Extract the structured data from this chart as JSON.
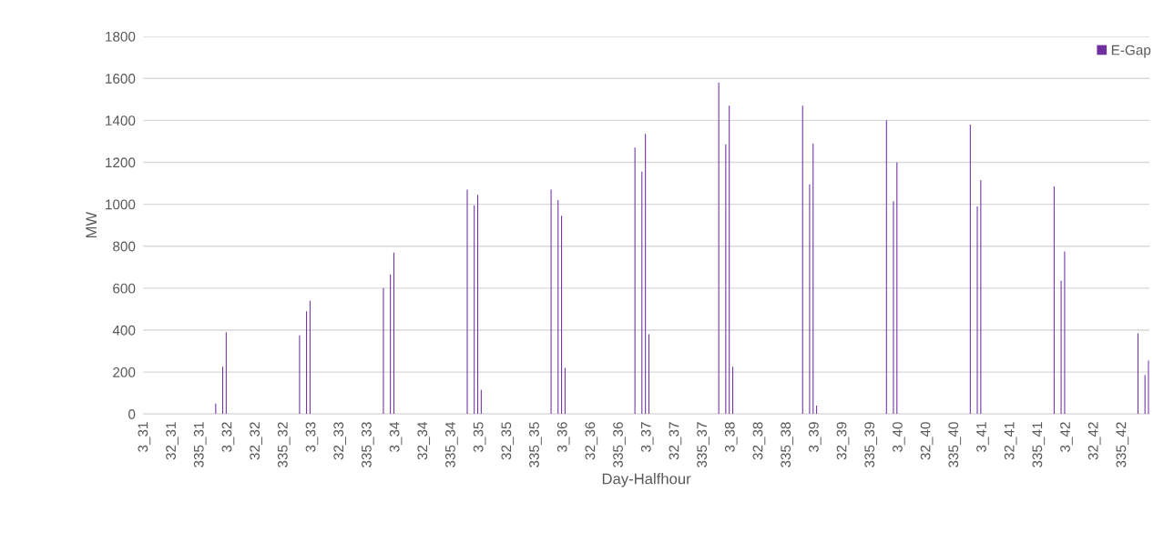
{
  "chart_data": {
    "type": "bar",
    "xlabel": "Day-Halfhour",
    "ylabel": "MW",
    "legend": "top right",
    "grid": "y",
    "ylim": [
      0,
      1800
    ],
    "yticks": [
      0,
      200,
      400,
      600,
      800,
      1000,
      1200,
      1400,
      1600,
      1800
    ],
    "categories": [
      "3_31",
      null,
      null,
      null,
      null,
      null,
      null,
      null,
      null,
      null,
      null,
      null,
      null,
      null,
      null,
      null,
      "32_31",
      null,
      null,
      null,
      null,
      null,
      null,
      null,
      null,
      null,
      null,
      null,
      null,
      null,
      null,
      null,
      "335_31",
      null,
      null,
      null,
      null,
      null,
      null,
      null,
      null,
      null,
      null,
      null,
      null,
      null,
      null,
      null,
      "3_32",
      null,
      null,
      null,
      null,
      null,
      null,
      null,
      null,
      null,
      null,
      null,
      null,
      null,
      null,
      null,
      "32_32",
      null,
      null,
      null,
      null,
      null,
      null,
      null,
      null,
      null,
      null,
      null,
      null,
      null,
      null,
      null,
      "335_32",
      null,
      null,
      null,
      null,
      null,
      null,
      null,
      null,
      null,
      null,
      null,
      null,
      null,
      null,
      null,
      "3_33",
      null,
      null,
      null,
      null,
      null,
      null,
      null,
      null,
      null,
      null,
      null,
      null,
      null,
      null,
      null,
      "32_33",
      null,
      null,
      null,
      null,
      null,
      null,
      null,
      null,
      null,
      null,
      null,
      null,
      null,
      null,
      null,
      "335_33",
      null,
      null,
      null,
      null,
      null,
      null,
      null,
      null,
      null,
      null,
      null,
      null,
      null,
      null,
      null,
      "3_34",
      null,
      null,
      null,
      null,
      null,
      null,
      null,
      null,
      null,
      null,
      null,
      null,
      null,
      null,
      null,
      "32_34",
      null,
      null,
      null,
      null,
      null,
      null,
      null,
      null,
      null,
      null,
      null,
      null,
      null,
      null,
      null,
      "335_34",
      null,
      null,
      null,
      null,
      null,
      null,
      null,
      null,
      null,
      null,
      null,
      null,
      null,
      null,
      null,
      "3_35",
      null,
      null,
      null,
      null,
      null,
      null,
      null,
      null,
      null,
      null,
      null,
      null,
      null,
      null,
      null,
      "32_35",
      null,
      null,
      null,
      null,
      null,
      null,
      null,
      null,
      null,
      null,
      null,
      null,
      null,
      null,
      null,
      "335_35",
      null,
      null,
      null,
      null,
      null,
      null,
      null,
      null,
      null,
      null,
      null,
      null,
      null,
      null,
      null,
      "3_36",
      null,
      null,
      null,
      null,
      null,
      null,
      null,
      null,
      null,
      null,
      null,
      null,
      null,
      null,
      null,
      "32_36",
      null,
      null,
      null,
      null,
      null,
      null,
      null,
      null,
      null,
      null,
      null,
      null,
      null,
      null,
      null,
      "335_36",
      null,
      null,
      null,
      null,
      null,
      null,
      null,
      null,
      null,
      null,
      null,
      null,
      null,
      null,
      null,
      "3_37",
      null,
      null,
      null,
      null,
      null,
      null,
      null,
      null,
      null,
      null,
      null,
      null,
      null,
      null,
      null,
      "32_37",
      null,
      null,
      null,
      null,
      null,
      null,
      null,
      null,
      null,
      null,
      null,
      null,
      null,
      null,
      null,
      "335_37",
      null,
      null,
      null,
      null,
      null,
      null,
      null,
      null,
      null,
      null,
      null,
      null,
      null,
      null,
      null,
      "3_38",
      null,
      null,
      null,
      null,
      null,
      null,
      null,
      null,
      null,
      null,
      null,
      null,
      null,
      null,
      null,
      "32_38",
      null,
      null,
      null,
      null,
      null,
      null,
      null,
      null,
      null,
      null,
      null,
      null,
      null,
      null,
      null,
      "335_38",
      null,
      null,
      null,
      null,
      null,
      null,
      null,
      null,
      null,
      null,
      null,
      null,
      null,
      null,
      null,
      "3_39",
      null,
      null,
      null,
      null,
      null,
      null,
      null,
      null,
      null,
      null,
      null,
      null,
      null,
      null,
      null,
      "32_39",
      null,
      null,
      null,
      null,
      null,
      null,
      null,
      null,
      null,
      null,
      null,
      null,
      null,
      null,
      null,
      "335_39",
      null,
      null,
      null,
      null,
      null,
      null,
      null,
      null,
      null,
      null,
      null,
      null,
      null,
      null,
      null,
      "3_40",
      null,
      null,
      null,
      null,
      null,
      null,
      null,
      null,
      null,
      null,
      null,
      null,
      null,
      null,
      null,
      "32_40",
      null,
      null,
      null,
      null,
      null,
      null,
      null,
      null,
      null,
      null,
      null,
      null,
      null,
      null,
      null,
      "335_40",
      null,
      null,
      null,
      null,
      null,
      null,
      null,
      null,
      null,
      null,
      null,
      null,
      null,
      null,
      null,
      "3_41",
      null,
      null,
      null,
      null,
      null,
      null,
      null,
      null,
      null,
      null,
      null,
      null,
      null,
      null,
      null,
      "32_41",
      null,
      null,
      null,
      null,
      null,
      null,
      null,
      null,
      null,
      null,
      null,
      null,
      null,
      null,
      null,
      "335_41",
      null,
      null,
      null,
      null,
      null,
      null,
      null,
      null,
      null,
      null,
      null,
      null,
      null,
      null,
      null,
      "3_42",
      null,
      null,
      null,
      null,
      null,
      null,
      null,
      null,
      null,
      null,
      null,
      null,
      null,
      null,
      null,
      "32_42",
      null,
      null,
      null,
      null,
      null,
      null,
      null,
      null,
      null,
      null,
      null,
      null,
      null,
      null,
      null,
      "335_42",
      null,
      null,
      null,
      null,
      null,
      null,
      null,
      null,
      null,
      null,
      null,
      null,
      null,
      null,
      null
    ],
    "series": [
      {
        "name": "E-Gap",
        "color": "#7030a0",
        "values": [
          0,
          0,
          0,
          0,
          0,
          0,
          0,
          0,
          0,
          0,
          0,
          0,
          0,
          0,
          0,
          0,
          0,
          0,
          0,
          0,
          0,
          0,
          0,
          0,
          0,
          0,
          0,
          0,
          0,
          0,
          0,
          0,
          0,
          0,
          0,
          0,
          0,
          0,
          0,
          0,
          0,
          50,
          0,
          0,
          0,
          225,
          0,
          390,
          0,
          0,
          0,
          0,
          0,
          0,
          0,
          0,
          0,
          0,
          0,
          0,
          0,
          0,
          0,
          0,
          0,
          0,
          0,
          0,
          0,
          0,
          0,
          0,
          0,
          0,
          0,
          0,
          0,
          0,
          0,
          0,
          0,
          0,
          0,
          0,
          0,
          0,
          0,
          0,
          0,
          375,
          0,
          0,
          0,
          490,
          0,
          540,
          0,
          0,
          0,
          0,
          0,
          0,
          0,
          0,
          0,
          0,
          0,
          0,
          0,
          0,
          0,
          0,
          0,
          0,
          0,
          0,
          0,
          0,
          0,
          0,
          0,
          0,
          0,
          0,
          0,
          0,
          0,
          0,
          0,
          0,
          0,
          0,
          0,
          0,
          0,
          0,
          0,
          600,
          0,
          0,
          0,
          665,
          0,
          770,
          0,
          0,
          0,
          0,
          0,
          0,
          0,
          0,
          0,
          0,
          0,
          0,
          0,
          0,
          0,
          0,
          0,
          0,
          0,
          0,
          0,
          0,
          0,
          0,
          0,
          0,
          0,
          0,
          0,
          0,
          0,
          0,
          0,
          0,
          0,
          0,
          0,
          0,
          0,
          0,
          0,
          1070,
          0,
          0,
          0,
          995,
          0,
          1045,
          0,
          115,
          0,
          0,
          0,
          0,
          0,
          0,
          0,
          0,
          0,
          0,
          0,
          0,
          0,
          0,
          0,
          0,
          0,
          0,
          0,
          0,
          0,
          0,
          0,
          0,
          0,
          0,
          0,
          0,
          0,
          0,
          0,
          0,
          0,
          0,
          0,
          0,
          0,
          0,
          0,
          1070,
          0,
          0,
          0,
          1020,
          0,
          945,
          0,
          220,
          0,
          0,
          0,
          0,
          0,
          0,
          0,
          0,
          0,
          0,
          0,
          0,
          0,
          0,
          0,
          0,
          0,
          0,
          0,
          0,
          0,
          0,
          0,
          0,
          0,
          0,
          0,
          0,
          0,
          0,
          0,
          0,
          0,
          0,
          0,
          0,
          0,
          0,
          0,
          1270,
          0,
          0,
          0,
          1155,
          0,
          1335,
          0,
          380,
          0,
          0,
          0,
          0,
          0,
          0,
          0,
          0,
          0,
          0,
          0,
          0,
          0,
          0,
          0,
          0,
          0,
          0,
          0,
          0,
          0,
          0,
          0,
          0,
          0,
          0,
          0,
          0,
          0,
          0,
          0,
          0,
          0,
          0,
          0,
          0,
          0,
          0,
          0,
          1580,
          0,
          0,
          0,
          1285,
          0,
          1470,
          0,
          225,
          0,
          0,
          0,
          0,
          0,
          0,
          0,
          0,
          0,
          0,
          0,
          0,
          0,
          0,
          0,
          0,
          0,
          0,
          0,
          0,
          0,
          0,
          0,
          0,
          0,
          0,
          0,
          0,
          0,
          0,
          0,
          0,
          0,
          0,
          0,
          0,
          0,
          0,
          0,
          1470,
          0,
          0,
          0,
          1095,
          0,
          1290,
          0,
          40,
          0,
          0,
          0,
          0,
          0,
          0,
          0,
          0,
          0,
          0,
          0,
          0,
          0,
          0,
          0,
          0,
          0,
          0,
          0,
          0,
          0,
          0,
          0,
          0,
          0,
          0,
          0,
          0,
          0,
          0,
          0,
          0,
          0,
          0,
          0,
          0,
          0,
          0,
          0,
          1400,
          0,
          0,
          0,
          1015,
          0,
          1200,
          0,
          0,
          0,
          0,
          0,
          0,
          0,
          0,
          0,
          0,
          0,
          0,
          0,
          0,
          0,
          0,
          0,
          0,
          0,
          0,
          0,
          0,
          0,
          0,
          0,
          0,
          0,
          0,
          0,
          0,
          0,
          0,
          0,
          0,
          0,
          0,
          0,
          0,
          0,
          0,
          0,
          1380,
          0,
          0,
          0,
          990,
          0,
          1115,
          0,
          0,
          0,
          0,
          0,
          0,
          0,
          0,
          0,
          0,
          0,
          0,
          0,
          0,
          0,
          0,
          0,
          0,
          0,
          0,
          0,
          0,
          0,
          0,
          0,
          0,
          0,
          0,
          0,
          0,
          0,
          0,
          0,
          0,
          0,
          0,
          0,
          0,
          0,
          0,
          0,
          1085,
          0,
          0,
          0,
          635,
          0,
          775,
          0,
          0,
          0,
          0,
          0,
          0,
          0,
          0,
          0,
          0,
          0,
          0,
          0,
          0,
          0,
          0,
          0,
          0,
          0,
          0,
          0,
          0,
          0,
          0,
          0,
          0,
          0,
          0,
          0,
          0,
          0,
          0,
          0,
          0,
          0,
          0,
          0,
          0,
          0,
          0,
          0,
          385,
          0,
          0,
          0,
          185,
          0,
          255
        ]
      }
    ]
  }
}
